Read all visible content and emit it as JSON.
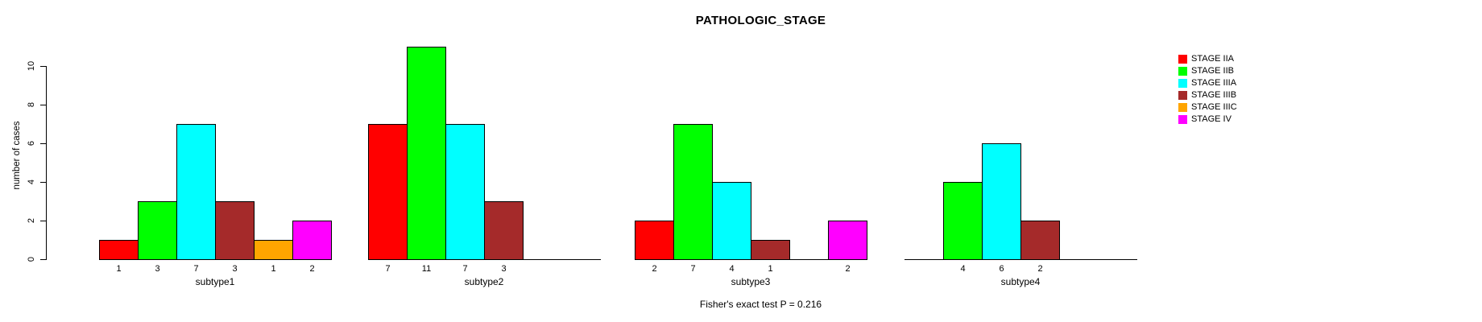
{
  "title": "PATHOLOGIC_STAGE",
  "ylabel": "number of cases",
  "footer": "Fisher's exact test P = 0.216",
  "legend": {
    "position": "top-right",
    "items": [
      {
        "label": "STAGE IIA",
        "color": "#FF0000"
      },
      {
        "label": "STAGE IIB",
        "color": "#00FF00"
      },
      {
        "label": "STAGE IIIA",
        "color": "#00FFFF"
      },
      {
        "label": "STAGE IIIB",
        "color": "#A52A2A"
      },
      {
        "label": "STAGE IIIC",
        "color": "#FFA500"
      },
      {
        "label": "STAGE IV",
        "color": "#FF00FF"
      }
    ]
  },
  "chart_data": {
    "type": "bar",
    "title": "PATHOLOGIC_STAGE",
    "xlabel": "",
    "ylabel": "number of cases",
    "ylim": [
      0,
      11
    ],
    "yticks": [
      0,
      2,
      4,
      6,
      8,
      10
    ],
    "grid": false,
    "legend_position": "top-right",
    "categories": [
      "STAGE IIA",
      "STAGE IIB",
      "STAGE IIIA",
      "STAGE IIIB",
      "STAGE IIIC",
      "STAGE IV"
    ],
    "colors": [
      "#FF0000",
      "#00FF00",
      "#00FFFF",
      "#A52A2A",
      "#FFA500",
      "#FF00FF"
    ],
    "groups": [
      {
        "label": "subtype1",
        "values": [
          1,
          3,
          7,
          3,
          1,
          2
        ]
      },
      {
        "label": "subtype2",
        "values": [
          7,
          11,
          7,
          3,
          null,
          null
        ]
      },
      {
        "label": "subtype3",
        "values": [
          2,
          7,
          4,
          1,
          null,
          2
        ]
      },
      {
        "label": "subtype4",
        "values": [
          null,
          4,
          6,
          2,
          null,
          null
        ]
      }
    ],
    "annotation": "Fisher's exact test P = 0.216"
  }
}
